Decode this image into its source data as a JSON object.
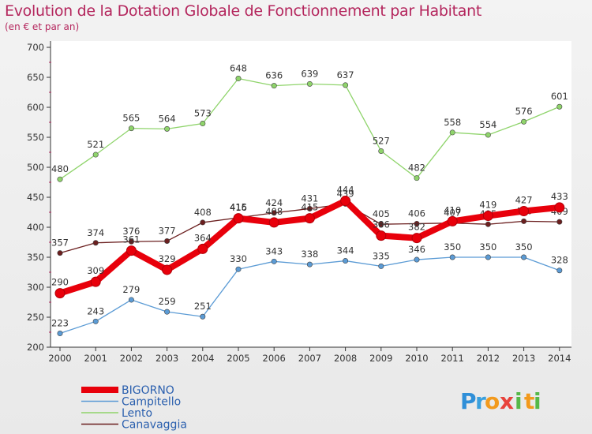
{
  "chart_data": {
    "type": "line",
    "title": "Evolution de la Dotation Globale de Fonctionnement par Habitant",
    "subtitle": "(en € et par an)",
    "categories": [
      "2000",
      "2001",
      "2002",
      "2003",
      "2004",
      "2005",
      "2006",
      "2007",
      "2008",
      "2009",
      "2010",
      "2011",
      "2012",
      "2013",
      "2014"
    ],
    "yticks": [
      "200",
      "250",
      "300",
      "350",
      "400",
      "450",
      "500",
      "550",
      "600",
      "650",
      "700"
    ],
    "ylim": [
      200,
      700
    ],
    "grid": false,
    "legend_position": "bottom-left",
    "series": [
      {
        "name": "BIGORNO",
        "color": "#e8000b",
        "style": "bold",
        "values": [
          290,
          309,
          361,
          329,
          364,
          415,
          408,
          415,
          444,
          386,
          382,
          410,
          419,
          427,
          433
        ],
        "labels": [
          "290",
          "309",
          "361",
          "329",
          "364",
          "415",
          "408",
          "415",
          "444",
          "386",
          "382",
          "410",
          "419",
          "427",
          "433"
        ]
      },
      {
        "name": "Campitello",
        "color": "#5b9bd5",
        "style": "thin",
        "values": [
          223,
          243,
          279,
          259,
          251,
          330,
          343,
          338,
          344,
          335,
          346,
          350,
          350,
          350,
          328
        ],
        "labels": [
          "223",
          "243",
          "279",
          "259",
          "251",
          "330",
          "343",
          "338",
          "344",
          "335",
          "346",
          "350",
          "350",
          "350",
          "328"
        ]
      },
      {
        "name": "Lento",
        "color": "#8fd46b",
        "style": "thin",
        "values": [
          480,
          521,
          565,
          564,
          573,
          648,
          636,
          639,
          637,
          527,
          482,
          558,
          554,
          576,
          601
        ],
        "labels": [
          "480",
          "521",
          "565",
          "564",
          "573",
          "648",
          "636",
          "639",
          "637",
          "527",
          "482",
          "558",
          "554",
          "576",
          "601"
        ]
      },
      {
        "name": "Canavaggia",
        "color": "#6b1f1f",
        "style": "thin",
        "values": [
          357,
          374,
          376,
          377,
          408,
          416,
          424,
          431,
          439,
          405,
          406,
          407,
          405,
          410,
          409
        ],
        "labels": [
          "357",
          "374",
          "376",
          "377",
          "408",
          "416",
          "424",
          "431",
          "439",
          "405",
          "406",
          "407",
          "405",
          "410",
          "409"
        ]
      }
    ]
  },
  "brand": {
    "letters": [
      "P",
      "r",
      "o",
      "x",
      "i",
      "t",
      "i"
    ],
    "colors": [
      "#2f8fd8",
      "#3aa0dd",
      "#f29a1d",
      "#e8423b",
      "#55b848",
      "#f29a1d",
      "#55b848"
    ]
  }
}
